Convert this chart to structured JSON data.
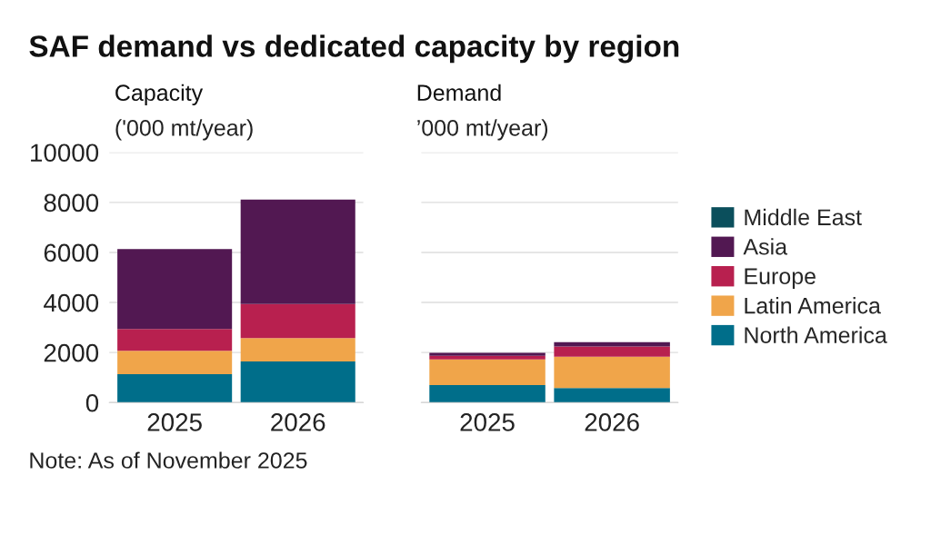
{
  "chart_data": [
    {
      "type": "bar",
      "title": "SAF demand vs dedicated capacity by region",
      "subtitle": "Capacity",
      "ylabel": "('000 mt/year)",
      "categories": [
        "2025",
        "2026"
      ],
      "stacked": true,
      "ylim": [
        0,
        10000
      ],
      "yticks": [
        0,
        2000,
        4000,
        6000,
        8000,
        10000
      ],
      "grid": "y",
      "series": [
        {
          "color": "#006e8a",
          "values": [
            1130,
            1640
          ]
        },
        {
          "color": "#f0a54a",
          "values": [
            940,
            940
          ]
        },
        {
          "color": "#b8204f",
          "values": [
            870,
            1360
          ]
        },
        {
          "color": "#521852",
          "values": [
            3190,
            4170
          ]
        },
        {
          "color": "#0b4f5c",
          "values": [
            0,
            0
          ]
        }
      ],
      "annotations": [
        "Note: As of November 2025"
      ]
    },
    {
      "type": "bar",
      "title": "Demand",
      "ylabel": "’000 mt/year)",
      "categories": [
        "2025",
        "2026"
      ],
      "stacked": true,
      "ylim": [
        0,
        10000
      ],
      "yticks": [
        0,
        2000,
        4000,
        6000,
        8000,
        10000
      ],
      "tick_labels": "x",
      "grid": "y",
      "legend": "right",
      "series": [
        {
          "name": "North America",
          "color": "#006e8a",
          "values": [
            700,
            580
          ]
        },
        {
          "name": "Latin America",
          "color": "#f0a54a",
          "values": [
            1020,
            1250
          ]
        },
        {
          "name": "Europe",
          "color": "#b8204f",
          "values": [
            150,
            410
          ]
        },
        {
          "name": "Asia",
          "color": "#521852",
          "values": [
            120,
            170
          ]
        },
        {
          "name": "Middle East",
          "color": "#0b4f5c",
          "values": [
            0,
            0
          ]
        }
      ]
    }
  ]
}
